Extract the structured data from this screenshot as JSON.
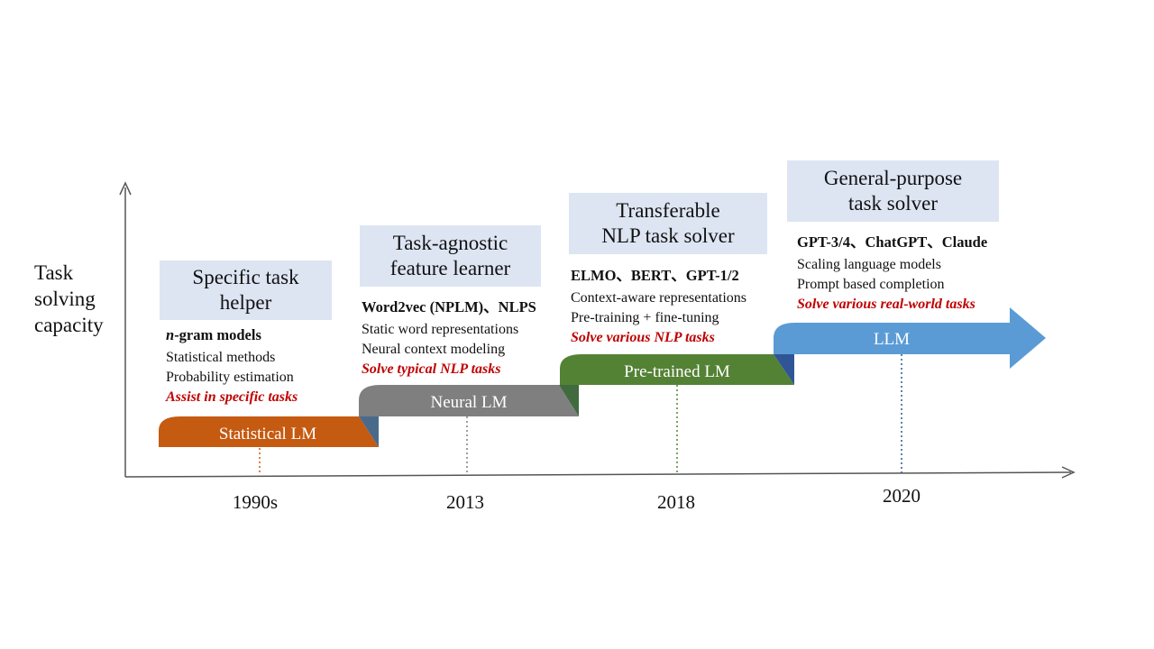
{
  "y_label": [
    "Task",
    "solving",
    "capacity"
  ],
  "stages": [
    {
      "name": "Statistical LM",
      "title": [
        "Specific task",
        "helper"
      ],
      "models": "n-gram models",
      "models_prefix": "n",
      "models_rest": "-gram models",
      "features": [
        "Statistical methods",
        "Probability estimation"
      ],
      "goal": "Assist in specific tasks",
      "year": "1990s",
      "color": "#c55a11"
    },
    {
      "name": "Neural LM",
      "title": [
        "Task-agnostic",
        "feature learner"
      ],
      "models": "Word2vec (NPLM)、NLPS",
      "features": [
        "Static word representations",
        "Neural context modeling"
      ],
      "goal": "Solve typical NLP tasks",
      "year": "2013",
      "color": "#7f7f7f"
    },
    {
      "name": "Pre-trained LM",
      "title": [
        "Transferable",
        "NLP task solver"
      ],
      "models": "ELMO、BERT、GPT-1/2",
      "features": [
        "Context-aware representations",
        "Pre-training + fine-tuning"
      ],
      "goal": "Solve various NLP tasks",
      "year": "2018",
      "color": "#548235"
    },
    {
      "name": "LLM",
      "title": [
        "General-purpose",
        "task solver"
      ],
      "models": "GPT-3/4、ChatGPT、Claude",
      "features": [
        "Scaling language models",
        "Prompt based completion"
      ],
      "goal": "Solve various real-world tasks",
      "year": "2020",
      "color": "#5b9bd5"
    }
  ]
}
